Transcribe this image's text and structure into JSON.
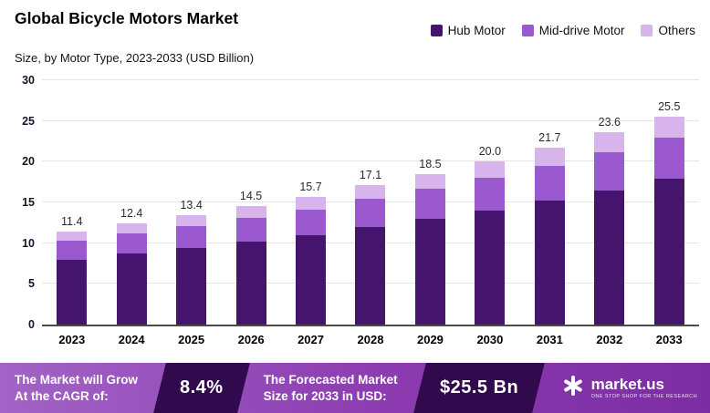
{
  "header": {
    "title": "Global Bicycle Motors Market",
    "subtitle": "Size, by Motor Type, 2023-2033 (USD Billion)"
  },
  "chart_data": {
    "type": "bar",
    "stacked": true,
    "title": "Global Bicycle Motors Market",
    "subtitle": "Size, by Motor Type, 2023-2033 (USD Billion)",
    "categories": [
      "2023",
      "2024",
      "2025",
      "2026",
      "2027",
      "2028",
      "2029",
      "2030",
      "2031",
      "2032",
      "2033"
    ],
    "series": [
      {
        "name": "Hub Motor",
        "color": "#45156E",
        "values": [
          8.0,
          8.7,
          9.4,
          10.2,
          11.0,
          12.0,
          13.0,
          14.0,
          15.2,
          16.5,
          17.9
        ]
      },
      {
        "name": "Mid-drive Motor",
        "color": "#9B59D0",
        "values": [
          2.3,
          2.5,
          2.7,
          2.9,
          3.1,
          3.4,
          3.7,
          4.0,
          4.3,
          4.7,
          5.1
        ]
      },
      {
        "name": "Others",
        "color": "#D7B4EC",
        "values": [
          1.1,
          1.2,
          1.3,
          1.4,
          1.6,
          1.7,
          1.8,
          2.0,
          2.2,
          2.4,
          2.5
        ]
      }
    ],
    "totals": [
      11.4,
      12.4,
      13.4,
      14.5,
      15.7,
      17.1,
      18.5,
      20.0,
      21.7,
      23.6,
      25.5
    ],
    "ylim": [
      0,
      30
    ],
    "yticks": [
      0,
      5,
      10,
      15,
      20,
      25,
      30
    ],
    "grid": true,
    "legend_position": "top-right",
    "ylabel": "USD Billion",
    "xlabel": ""
  },
  "footer": {
    "cagr_label_line1": "The Market will Grow",
    "cagr_label_line2": "At the CAGR of:",
    "cagr_value": "8.4%",
    "forecast_label_line1": "The Forecasted Market",
    "forecast_label_line2": "Size for 2033 in USD:",
    "forecast_value": "$25.5 Bn",
    "brand": "market.us",
    "brand_tagline": "ONE STOP SHOP FOR THE RESEARCH",
    "chip_color": "#300A4D",
    "background_colors": [
      "#A263C6",
      "#7C2DA2"
    ]
  }
}
